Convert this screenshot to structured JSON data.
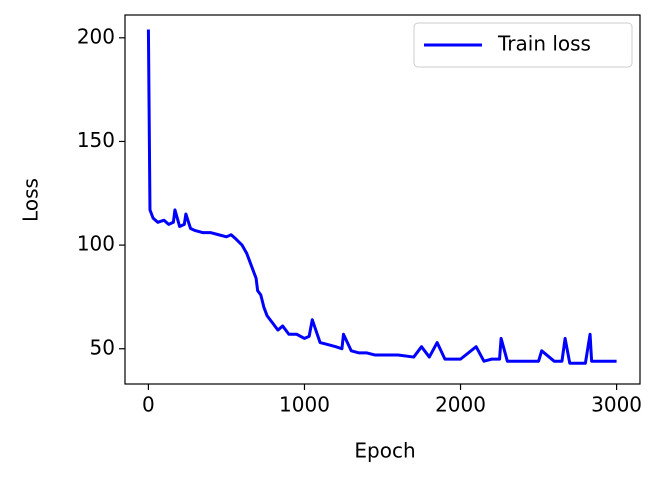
{
  "chart_data": {
    "type": "line",
    "xlabel": "Epoch",
    "ylabel": "Loss",
    "x": [
      0,
      10,
      30,
      60,
      100,
      130,
      160,
      170,
      200,
      230,
      240,
      270,
      300,
      350,
      400,
      450,
      500,
      530,
      560,
      600,
      630,
      660,
      690,
      700,
      720,
      740,
      760,
      780,
      800,
      830,
      860,
      900,
      950,
      1000,
      1030,
      1050,
      1100,
      1150,
      1200,
      1240,
      1250,
      1300,
      1350,
      1400,
      1450,
      1500,
      1600,
      1700,
      1750,
      1800,
      1850,
      1900,
      2000,
      2100,
      2150,
      2200,
      2250,
      2260,
      2300,
      2400,
      2500,
      2520,
      2600,
      2650,
      2670,
      2700,
      2800,
      2830,
      2840,
      2900,
      3000
    ],
    "series": [
      {
        "name": "Train loss",
        "color": "#0000ff",
        "values": [
          204,
          117,
          113,
          111,
          112,
          110,
          111,
          117,
          109,
          110,
          115,
          108,
          107,
          106,
          106,
          105,
          104,
          105,
          103,
          100,
          96,
          90,
          84,
          78,
          76,
          70,
          66,
          64,
          62,
          59,
          61,
          57,
          57,
          55,
          56,
          64,
          53,
          52,
          51,
          50,
          57,
          49,
          48,
          48,
          47,
          47,
          47,
          46,
          51,
          46,
          53,
          45,
          45,
          51,
          44,
          45,
          45,
          55,
          44,
          44,
          44,
          49,
          44,
          44,
          55,
          43,
          43,
          57,
          44,
          44,
          44
        ]
      }
    ],
    "xlim": [
      -150,
      3150
    ],
    "ylim": [
      33,
      211
    ],
    "xticks": [
      0,
      1000,
      2000,
      3000
    ],
    "yticks": [
      50,
      100,
      150,
      200
    ],
    "legend": "upper right"
  }
}
